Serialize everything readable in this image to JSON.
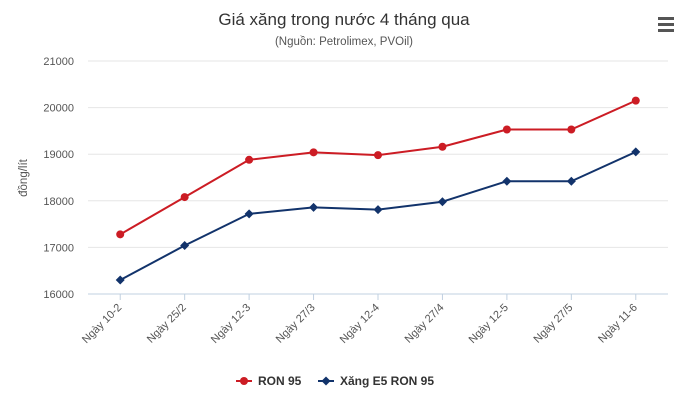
{
  "chart_data": {
    "type": "line",
    "title": "Giá xăng trong nước 4 tháng qua",
    "subtitle": "(Nguồn: Petrolimex, PVOil)",
    "ylabel": "đồng/lít",
    "xlabel": "",
    "categories": [
      "Ngày 10-2",
      "Ngày 25/2",
      "Ngày 12-3",
      "Ngày 27/3",
      "Ngày 12-4",
      "Ngày 27/4",
      "Ngày 12-5",
      "Ngày 27/5",
      "Ngày 11-6"
    ],
    "ylim": [
      16000,
      21000
    ],
    "yticks": [
      16000,
      17000,
      18000,
      19000,
      20000,
      21000
    ],
    "grid": true,
    "legend_position": "bottom",
    "series": [
      {
        "name": "RON 95",
        "color": "#cc1c24",
        "marker": "circle",
        "values": [
          17280,
          18080,
          18880,
          19040,
          18980,
          19160,
          19530,
          19530,
          20150
        ]
      },
      {
        "name": "Xăng E5 RON 95",
        "color": "#12336b",
        "marker": "diamond",
        "values": [
          16300,
          17040,
          17720,
          17860,
          17810,
          17980,
          18420,
          18420,
          19050
        ]
      }
    ]
  },
  "menu_icon": "hamburger-menu-icon"
}
